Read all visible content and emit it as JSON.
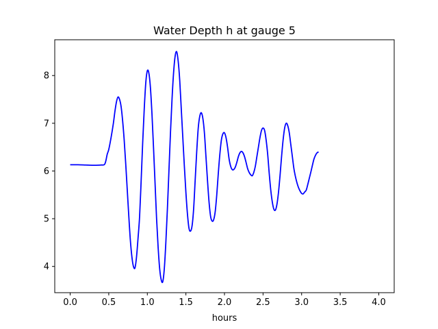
{
  "chart_data": {
    "type": "line",
    "title": "Water Depth h at gauge 5",
    "xlabel": "hours",
    "ylabel": "",
    "xlim": [
      -0.2,
      4.2
    ],
    "ylim": [
      3.45,
      8.75
    ],
    "xticks": [
      0.0,
      0.5,
      1.0,
      1.5,
      2.0,
      2.5,
      3.0,
      3.5,
      4.0
    ],
    "xtick_labels": [
      "0.0",
      "0.5",
      "1.0",
      "1.5",
      "2.0",
      "2.5",
      "3.0",
      "3.5",
      "4.0"
    ],
    "yticks": [
      4,
      5,
      6,
      7,
      8
    ],
    "ytick_labels": [
      "4",
      "5",
      "6",
      "7",
      "8"
    ],
    "grid": false,
    "legend": null,
    "series": [
      {
        "color": "#0000ff",
        "points": [
          [
            0.0,
            6.13
          ],
          [
            0.1,
            6.13
          ],
          [
            0.2,
            6.125
          ],
          [
            0.3,
            6.12
          ],
          [
            0.4,
            6.125
          ],
          [
            0.45,
            6.15
          ],
          [
            0.48,
            6.35
          ],
          [
            0.5,
            6.45
          ],
          [
            0.53,
            6.7
          ],
          [
            0.56,
            7.0
          ],
          [
            0.58,
            7.25
          ],
          [
            0.6,
            7.45
          ],
          [
            0.62,
            7.55
          ],
          [
            0.64,
            7.5
          ],
          [
            0.66,
            7.35
          ],
          [
            0.68,
            7.05
          ],
          [
            0.7,
            6.65
          ],
          [
            0.72,
            6.15
          ],
          [
            0.74,
            5.6
          ],
          [
            0.76,
            5.05
          ],
          [
            0.78,
            4.55
          ],
          [
            0.8,
            4.2
          ],
          [
            0.82,
            4.0
          ],
          [
            0.84,
            3.97
          ],
          [
            0.86,
            4.2
          ],
          [
            0.88,
            4.6
          ],
          [
            0.9,
            5.05
          ],
          [
            0.92,
            5.8
          ],
          [
            0.94,
            6.6
          ],
          [
            0.96,
            7.3
          ],
          [
            0.98,
            7.85
          ],
          [
            1.0,
            8.1
          ],
          [
            1.02,
            8.05
          ],
          [
            1.04,
            7.75
          ],
          [
            1.06,
            7.2
          ],
          [
            1.08,
            6.5
          ],
          [
            1.1,
            5.75
          ],
          [
            1.12,
            5.0
          ],
          [
            1.14,
            4.4
          ],
          [
            1.16,
            3.95
          ],
          [
            1.18,
            3.72
          ],
          [
            1.2,
            3.68
          ],
          [
            1.22,
            3.95
          ],
          [
            1.24,
            4.5
          ],
          [
            1.26,
            5.2
          ],
          [
            1.28,
            6.0
          ],
          [
            1.3,
            6.8
          ],
          [
            1.32,
            7.5
          ],
          [
            1.34,
            8.05
          ],
          [
            1.36,
            8.4
          ],
          [
            1.38,
            8.5
          ],
          [
            1.4,
            8.3
          ],
          [
            1.42,
            7.9
          ],
          [
            1.44,
            7.3
          ],
          [
            1.46,
            6.7
          ],
          [
            1.48,
            6.1
          ],
          [
            1.5,
            5.55
          ],
          [
            1.52,
            5.1
          ],
          [
            1.54,
            4.8
          ],
          [
            1.56,
            4.74
          ],
          [
            1.58,
            4.85
          ],
          [
            1.6,
            5.2
          ],
          [
            1.62,
            5.8
          ],
          [
            1.64,
            6.4
          ],
          [
            1.66,
            6.9
          ],
          [
            1.68,
            7.15
          ],
          [
            1.7,
            7.22
          ],
          [
            1.72,
            7.1
          ],
          [
            1.74,
            6.8
          ],
          [
            1.76,
            6.3
          ],
          [
            1.78,
            5.8
          ],
          [
            1.8,
            5.35
          ],
          [
            1.82,
            5.05
          ],
          [
            1.84,
            4.95
          ],
          [
            1.86,
            4.98
          ],
          [
            1.88,
            5.15
          ],
          [
            1.9,
            5.5
          ],
          [
            1.92,
            5.95
          ],
          [
            1.94,
            6.35
          ],
          [
            1.96,
            6.65
          ],
          [
            1.98,
            6.78
          ],
          [
            2.0,
            6.8
          ],
          [
            2.02,
            6.7
          ],
          [
            2.04,
            6.5
          ],
          [
            2.06,
            6.25
          ],
          [
            2.08,
            6.1
          ],
          [
            2.1,
            6.03
          ],
          [
            2.12,
            6.03
          ],
          [
            2.14,
            6.08
          ],
          [
            2.16,
            6.18
          ],
          [
            2.18,
            6.3
          ],
          [
            2.2,
            6.38
          ],
          [
            2.22,
            6.41
          ],
          [
            2.24,
            6.38
          ],
          [
            2.26,
            6.3
          ],
          [
            2.28,
            6.18
          ],
          [
            2.3,
            6.05
          ],
          [
            2.32,
            5.97
          ],
          [
            2.34,
            5.92
          ],
          [
            2.36,
            5.9
          ],
          [
            2.38,
            5.97
          ],
          [
            2.4,
            6.1
          ],
          [
            2.42,
            6.3
          ],
          [
            2.44,
            6.5
          ],
          [
            2.46,
            6.7
          ],
          [
            2.48,
            6.85
          ],
          [
            2.5,
            6.9
          ],
          [
            2.52,
            6.85
          ],
          [
            2.54,
            6.65
          ],
          [
            2.56,
            6.35
          ],
          [
            2.58,
            5.95
          ],
          [
            2.6,
            5.6
          ],
          [
            2.62,
            5.35
          ],
          [
            2.64,
            5.2
          ],
          [
            2.66,
            5.18
          ],
          [
            2.68,
            5.3
          ],
          [
            2.7,
            5.55
          ],
          [
            2.72,
            5.9
          ],
          [
            2.74,
            6.3
          ],
          [
            2.76,
            6.65
          ],
          [
            2.78,
            6.9
          ],
          [
            2.8,
            7.0
          ],
          [
            2.82,
            6.95
          ],
          [
            2.84,
            6.8
          ],
          [
            2.86,
            6.55
          ],
          [
            2.88,
            6.3
          ],
          [
            2.9,
            6.05
          ],
          [
            2.92,
            5.88
          ],
          [
            2.94,
            5.75
          ],
          [
            2.96,
            5.65
          ],
          [
            2.98,
            5.58
          ],
          [
            3.0,
            5.53
          ],
          [
            3.02,
            5.52
          ],
          [
            3.04,
            5.56
          ],
          [
            3.06,
            5.6
          ],
          [
            3.08,
            5.72
          ],
          [
            3.1,
            5.85
          ],
          [
            3.12,
            5.98
          ],
          [
            3.14,
            6.12
          ],
          [
            3.16,
            6.25
          ],
          [
            3.18,
            6.33
          ],
          [
            3.2,
            6.38
          ],
          [
            3.22,
            6.4
          ]
        ]
      }
    ]
  }
}
